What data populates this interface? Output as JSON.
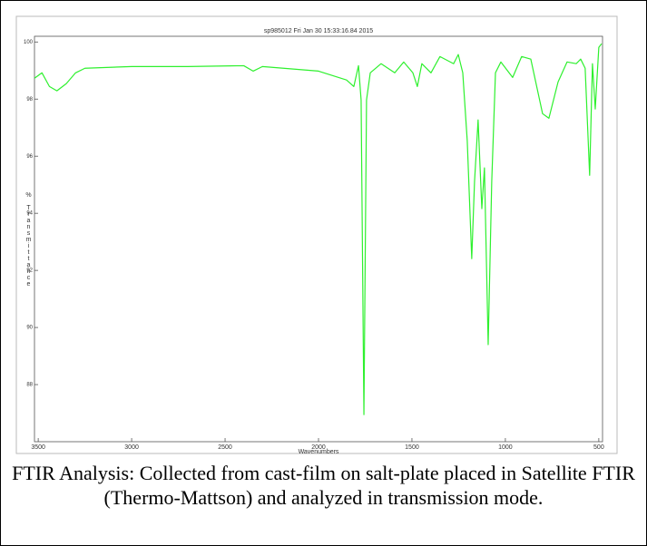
{
  "chart_data": {
    "type": "line",
    "title": "sp985012 Fri Jan 30 15:33:16.84 2015",
    "x_label": "Wavenumbers",
    "y_label": "% Transmittance",
    "x": [
      3520,
      3480,
      3440,
      3400,
      3350,
      3300,
      3250,
      3000,
      2700,
      2400,
      2350,
      2300,
      2000,
      1850,
      1811,
      1786,
      1772,
      1757,
      1743,
      1723,
      1665,
      1592,
      1544,
      1495,
      1471,
      1447,
      1398,
      1350,
      1277,
      1252,
      1228,
      1204,
      1180,
      1165,
      1146,
      1126,
      1112,
      1092,
      1073,
      1053,
      1024,
      961,
      913,
      864,
      801,
      767,
      718,
      670,
      621,
      597,
      573,
      549,
      534,
      519,
      500,
      485
    ],
    "series": [
      {
        "color": "#2ef02e",
        "values": [
          98.73,
          98.92,
          98.44,
          98.29,
          98.54,
          98.92,
          99.08,
          99.14,
          99.14,
          99.17,
          98.98,
          99.14,
          98.98,
          98.67,
          98.44,
          99.17,
          97.97,
          86.95,
          97.97,
          98.92,
          99.24,
          98.92,
          99.3,
          98.92,
          98.44,
          99.24,
          98.92,
          99.49,
          99.24,
          99.56,
          98.92,
          96.54,
          92.41,
          95.11,
          97.27,
          94.16,
          95.59,
          89.4,
          95.11,
          98.92,
          99.3,
          98.76,
          99.49,
          99.4,
          97.49,
          97.33,
          98.6,
          99.3,
          99.24,
          99.4,
          99.08,
          95.33,
          99.24,
          97.65,
          99.81,
          99.94
        ]
      }
    ],
    "xlim": [
      3520,
      480
    ],
    "xticks": [
      3500,
      3000,
      2500,
      2000,
      1500,
      1000,
      500
    ],
    "ylim": [
      86,
      100.2
    ],
    "yticks": [
      100,
      98,
      96,
      94,
      92,
      90,
      88
    ]
  },
  "caption": "FTIR Analysis: Collected from cast-film on salt-plate placed in Satellite FTIR (Thermo-Mattson) and analyzed in transmission mode."
}
